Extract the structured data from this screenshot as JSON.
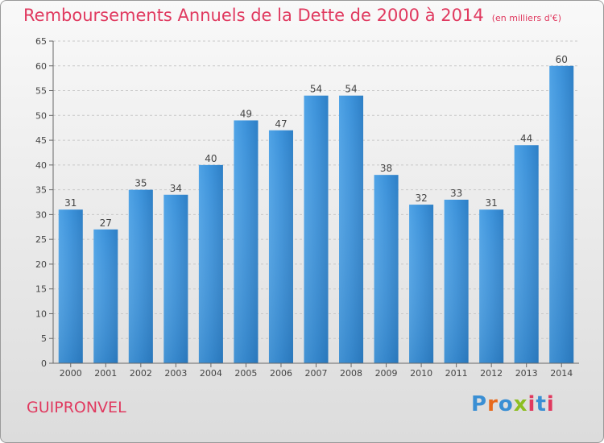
{
  "chart_data": {
    "type": "bar",
    "title": "Remboursements Annuels de la Dette de 2000 à 2014",
    "subtitle": "(en milliers d'€)",
    "categories": [
      "2000",
      "2001",
      "2002",
      "2003",
      "2004",
      "2005",
      "2006",
      "2007",
      "2008",
      "2009",
      "2010",
      "2011",
      "2012",
      "2013",
      "2014"
    ],
    "values": [
      31,
      27,
      35,
      34,
      40,
      49,
      47,
      54,
      54,
      38,
      32,
      33,
      31,
      44,
      60
    ],
    "ylim": [
      0,
      65
    ],
    "yticks": [
      0,
      5,
      10,
      15,
      20,
      25,
      30,
      35,
      40,
      45,
      50,
      55,
      60,
      65
    ],
    "grid": true,
    "bar_color": "#3a8fd4",
    "title_color": "#e0395f"
  },
  "footer": {
    "city": "GUIPRONVEL",
    "logo": "Proxiti"
  }
}
